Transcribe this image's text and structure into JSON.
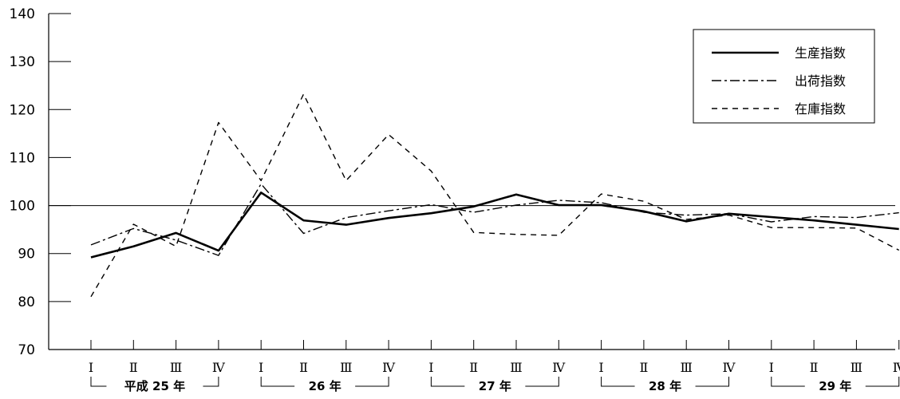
{
  "chart_data": {
    "type": "line",
    "title": "",
    "xlabel": "",
    "ylabel": "",
    "ylim": [
      70,
      140
    ],
    "yticks": [
      70,
      80,
      90,
      100,
      110,
      120,
      130,
      140
    ],
    "reference_line": 100,
    "grid": false,
    "legend_position": "top-right",
    "quarters": [
      "Ⅰ",
      "Ⅱ",
      "Ⅲ",
      "Ⅳ",
      "Ⅰ",
      "Ⅱ",
      "Ⅲ",
      "Ⅳ",
      "Ⅰ",
      "Ⅱ",
      "Ⅲ",
      "Ⅳ",
      "Ⅰ",
      "Ⅱ",
      "Ⅲ",
      "Ⅳ",
      "Ⅰ",
      "Ⅱ",
      "Ⅲ",
      "Ⅳ"
    ],
    "years": [
      {
        "label": "平成 25 年",
        "start": 0,
        "end": 3
      },
      {
        "label": "26 年",
        "start": 4,
        "end": 7
      },
      {
        "label": "27 年",
        "start": 8,
        "end": 11
      },
      {
        "label": "28 年",
        "start": 12,
        "end": 15
      },
      {
        "label": "29 年",
        "start": 16,
        "end": 19
      }
    ],
    "series": [
      {
        "name": "生産指数",
        "style": "solid",
        "values": [
          89.2,
          91.5,
          94.3,
          90.6,
          102.7,
          96.9,
          96.0,
          97.4,
          98.4,
          99.8,
          102.3,
          100.1,
          100.1,
          98.8,
          96.7,
          98.3,
          97.6,
          96.9,
          96.0,
          95.1
        ]
      },
      {
        "name": "出荷指数",
        "style": "dashdot",
        "values": [
          91.8,
          95.2,
          92.8,
          89.6,
          104.5,
          94.2,
          97.5,
          98.9,
          100.2,
          98.6,
          100.1,
          101.1,
          100.6,
          98.6,
          98.0,
          98.3,
          96.6,
          97.7,
          97.5,
          98.5
        ]
      },
      {
        "name": "在庫指数",
        "style": "dashed",
        "values": [
          81.0,
          96.1,
          91.5,
          117.3,
          105.2,
          123.2,
          105.2,
          114.8,
          107.2,
          94.4,
          94.0,
          93.8,
          102.4,
          100.9,
          97.1,
          98.0,
          95.4,
          95.4,
          95.3,
          90.7
        ]
      }
    ]
  }
}
